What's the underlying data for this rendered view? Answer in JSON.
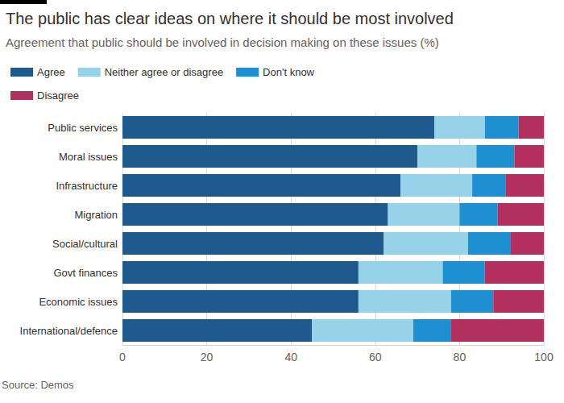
{
  "chart_data": {
    "type": "bar",
    "title": "The public has clear ideas on where it should be most involved",
    "subtitle": "Agreement that public should be involved in decision making on these issues (%)",
    "source": "Source: Demos",
    "orientation": "horizontal",
    "stacked": true,
    "grid": true,
    "legend": "top-left",
    "data_labels": false,
    "categories": [
      "Public services",
      "Moral issues",
      "Infrastructure",
      "Migration",
      "Social/cultural",
      "Govt finances",
      "Economic issues",
      "International/defence"
    ],
    "series": [
      {
        "name": "Agree",
        "color": "#1f5a8f",
        "values": [
          74,
          70,
          66,
          63,
          62,
          56,
          56,
          45
        ]
      },
      {
        "name": "Neither agree or disagree",
        "color": "#96d3e8",
        "values": [
          12,
          14,
          17,
          17,
          20,
          20,
          22,
          24
        ]
      },
      {
        "name": "Don't know",
        "color": "#1e8fd0",
        "values": [
          8,
          9,
          8,
          9,
          10,
          10,
          10,
          9
        ]
      },
      {
        "name": "Disagree",
        "color": "#b3305e",
        "values": [
          6,
          7,
          9,
          11,
          8,
          14,
          12,
          22
        ]
      }
    ],
    "xlim": [
      0,
      100
    ],
    "xticks": [
      0,
      20,
      40,
      60,
      80,
      100
    ]
  }
}
